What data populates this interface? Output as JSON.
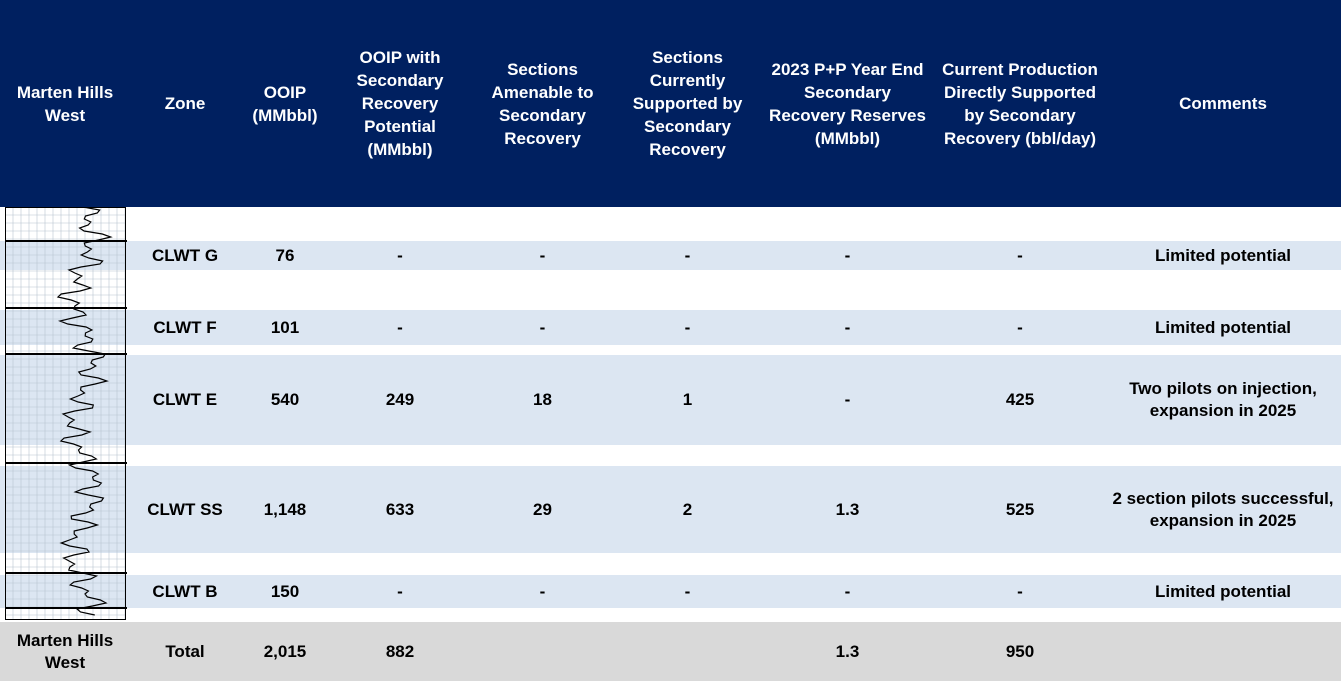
{
  "header": {
    "columns": [
      "Marten Hills West",
      "Zone",
      "OOIP (MMbbl)",
      "OOIP with Secondary Recovery Potential (MMbbl)",
      "Sections Amenable to Secondary Recovery",
      "Sections Currently Supported by Secondary Recovery",
      "2023 P+P Year End Secondary Recovery Reserves (MMbbl)",
      "Current Production Directly Supported by Secondary Recovery (bbl/day)",
      "Comments"
    ]
  },
  "table": {
    "rows": [
      {
        "zone": "CLWT G",
        "ooip": "76",
        "ooip_secondary": "-",
        "sections_amenable": "-",
        "sections_supported": "-",
        "reserves": "-",
        "production": "-",
        "comments": "Limited potential"
      },
      {
        "zone": "CLWT F",
        "ooip": "101",
        "ooip_secondary": "-",
        "sections_amenable": "-",
        "sections_supported": "-",
        "reserves": "-",
        "production": "-",
        "comments": "Limited potential"
      },
      {
        "zone": "CLWT E",
        "ooip": "540",
        "ooip_secondary": "249",
        "sections_amenable": "18",
        "sections_supported": "1",
        "reserves": "-",
        "production": "425",
        "comments": "Two pilots on injection, expansion in 2025"
      },
      {
        "zone": "CLWT SS",
        "ooip": "1,148",
        "ooip_secondary": "633",
        "sections_amenable": "29",
        "sections_supported": "2",
        "reserves": "1.3",
        "production": "525",
        "comments": "2 section pilots successful, expansion in 2025"
      },
      {
        "zone": "CLWT B",
        "ooip": "150",
        "ooip_secondary": "-",
        "sections_amenable": "-",
        "sections_supported": "-",
        "reserves": "-",
        "production": "-",
        "comments": "Limited potential"
      }
    ],
    "total": {
      "area": "Marten Hills West",
      "zone": "Total",
      "ooip": "2,015",
      "ooip_secondary": "882",
      "reserves": "1.3",
      "production": "950"
    }
  }
}
